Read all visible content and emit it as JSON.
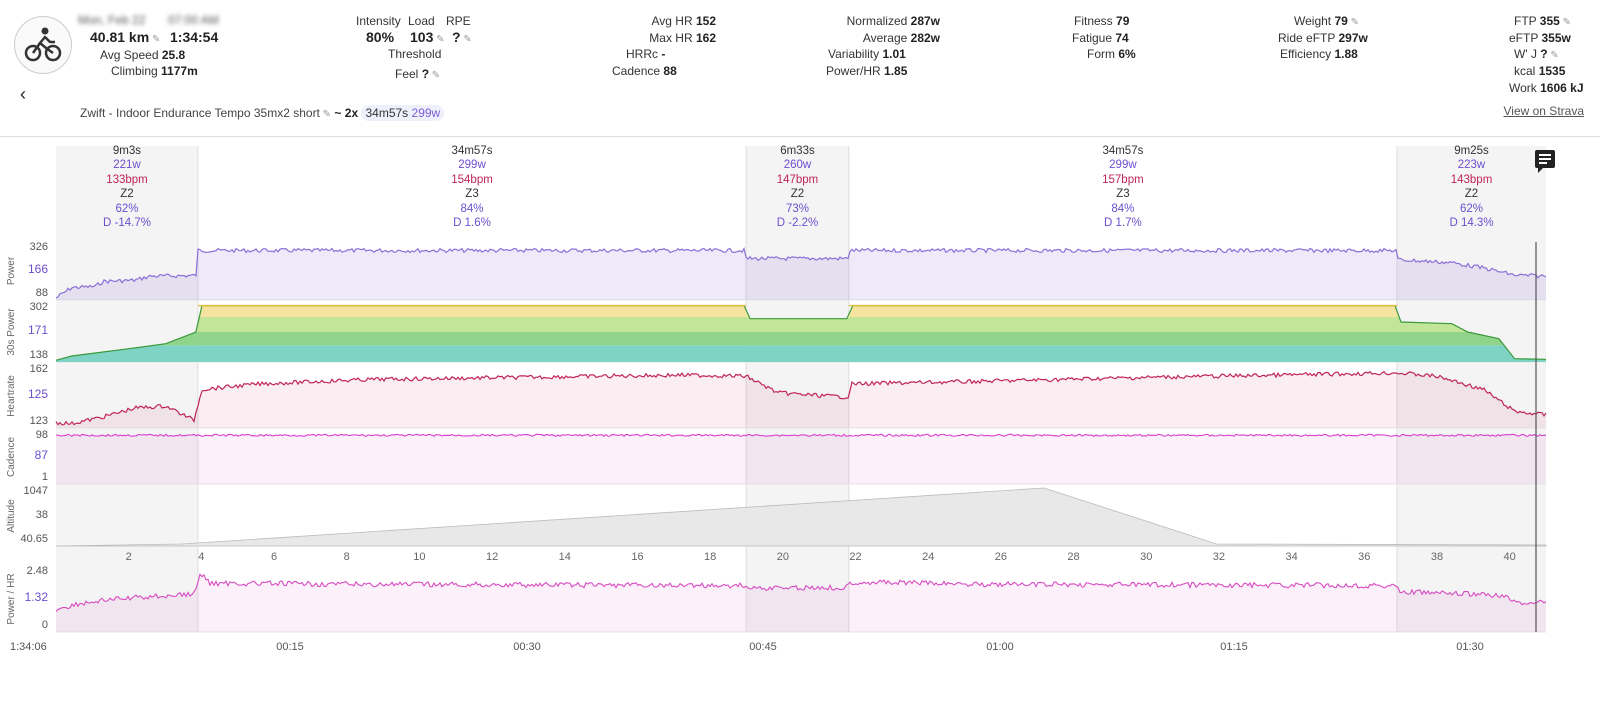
{
  "header": {
    "date_blurred": "Mon, Feb 22",
    "time_blurred": "07:00 AM",
    "distance": "40.81 km",
    "duration": "1:34:54",
    "avg_speed_label": "Avg Speed",
    "avg_speed": "25.8",
    "climbing_label": "Climbing",
    "climbing": "1177m",
    "intensity_label": "Intensity",
    "intensity": "80%",
    "load_label": "Load",
    "load": "103",
    "rpe_label": "RPE",
    "rpe": "?",
    "threshold_label": "Threshold",
    "feel_label": "Feel",
    "feel": "?",
    "avg_hr_label": "Avg HR",
    "avg_hr": "152",
    "max_hr_label": "Max HR",
    "max_hr": "162",
    "hrrc_label": "HRRc",
    "hrrc": "-",
    "cadence_label": "Cadence",
    "cadence": "88",
    "normalized_label": "Normalized",
    "normalized": "287w",
    "average_label": "Average",
    "average": "282w",
    "variability_label": "Variability",
    "variability": "1.01",
    "powerhr_label": "Power/HR",
    "powerhr": "1.85",
    "fitness_label": "Fitness",
    "fitness": "79",
    "fatigue_label": "Fatigue",
    "fatigue": "74",
    "form_label": "Form",
    "form": "6%",
    "weight_label": "Weight",
    "weight": "79",
    "ride_eftp_label": "Ride eFTP",
    "ride_eftp": "297w",
    "efficiency_label": "Efficiency",
    "efficiency": "1.88",
    "ftp_label": "FTP",
    "ftp": "355",
    "eftp_label": "eFTP",
    "eftp": "355w",
    "wj_label": "W' J",
    "wj": "?",
    "kcal_label": "kcal",
    "kcal": "1535",
    "work_label": "Work",
    "work": "1606 kJ",
    "view_strava": "View on Strava",
    "workout_name": "Zwift - Indoor Endurance Tempo 35mx2 short",
    "workout_reps": "~ 2x",
    "workout_dur": "34m57s",
    "workout_pow": "299w"
  },
  "intervals": [
    {
      "dur": "9m3s",
      "w": "221w",
      "bpm": "133bpm",
      "z": "Z2",
      "pct": "62%",
      "d": "D -14.7%"
    },
    {
      "dur": "34m57s",
      "w": "299w",
      "bpm": "154bpm",
      "z": "Z3",
      "pct": "84%",
      "d": "D 1.6%"
    },
    {
      "dur": "6m33s",
      "w": "260w",
      "bpm": "147bpm",
      "z": "Z2",
      "pct": "73%",
      "d": "D -2.2%"
    },
    {
      "dur": "34m57s",
      "w": "299w",
      "bpm": "157bpm",
      "z": "Z3",
      "pct": "84%",
      "d": "D 1.7%"
    },
    {
      "dur": "9m25s",
      "w": "223w",
      "bpm": "143bpm",
      "z": "Z2",
      "pct": "62%",
      "d": "D 14.3%"
    }
  ],
  "panels": [
    {
      "label": "Power",
      "ticks": [
        "326",
        "166",
        "88"
      ],
      "highlight": "166"
    },
    {
      "label": "30s Power",
      "ticks": [
        "302",
        "171",
        "138"
      ],
      "highlight": "171"
    },
    {
      "label": "Heartrate",
      "ticks": [
        "162",
        "125",
        "123"
      ],
      "highlight": "125"
    },
    {
      "label": "Cadence",
      "ticks": [
        "98",
        "87",
        "1"
      ],
      "highlight": "87"
    },
    {
      "label": "Altitude",
      "ticks": [
        "1047",
        "38",
        "40.65"
      ],
      "highlight": ""
    },
    {
      "label": "Power / HR",
      "ticks": [
        "2.48",
        "1.32",
        "0"
      ],
      "highlight": "1.32"
    }
  ],
  "km_ticks": [
    "2",
    "4",
    "6",
    "8",
    "10",
    "12",
    "14",
    "16",
    "18",
    "20",
    "22",
    "24",
    "26",
    "28",
    "30",
    "32",
    "34",
    "36",
    "38",
    "40"
  ],
  "time_ticks": [
    "1:34:06",
    "00:15",
    "00:30",
    "00:45",
    "01:00",
    "01:15",
    "01:30"
  ],
  "colors": {
    "power": "#8a6fd8",
    "hr": "#c0245a",
    "cadence": "#d83fd0",
    "pwrhr": "#d64bc2",
    "accent": "#6b4fd0"
  },
  "chart_data": {
    "type": "line",
    "x_unit": "min",
    "xlim": [
      0,
      95
    ],
    "segments_min": [
      0,
      9.05,
      44.0,
      50.55,
      85.5,
      95
    ],
    "power_segments_w": [
      [
        120,
        150,
        175,
        210
      ],
      [
        299
      ],
      [
        260
      ],
      [
        299
      ],
      [
        250,
        210,
        150
      ]
    ],
    "hr_levels_bpm": [
      133,
      154,
      147,
      157,
      143
    ],
    "cadence_rpm": 92
  }
}
